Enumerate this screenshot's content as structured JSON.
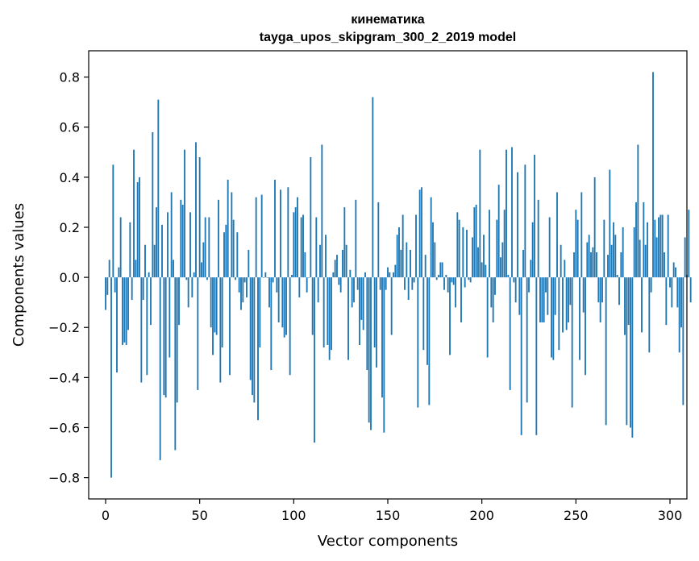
{
  "chart_data": {
    "type": "bar",
    "title_line1": "кинематика",
    "title_line2": "tayga_upos_skipgram_300_2_2019 model",
    "xlabel": "Vector components",
    "ylabel": "Components values",
    "xlim": [
      -9,
      309
    ],
    "ylim": [
      -0.885,
      0.905
    ],
    "x_ticks": [
      0,
      50,
      100,
      150,
      200,
      250,
      300
    ],
    "x_tick_labels": [
      "0",
      "50",
      "100",
      "150",
      "200",
      "250",
      "300"
    ],
    "y_ticks": [
      -0.8,
      -0.6,
      -0.4,
      -0.2,
      0.0,
      0.2,
      0.4,
      0.6,
      0.8
    ],
    "y_tick_labels": [
      "−0.8",
      "−0.6",
      "−0.4",
      "−0.2",
      "0.0",
      "0.2",
      "0.4",
      "0.6",
      "0.8"
    ],
    "bar_color": "#1f77b4",
    "grid": false,
    "values": [
      -0.13,
      -0.07,
      0.07,
      -0.8,
      0.45,
      -0.06,
      -0.38,
      0.04,
      0.24,
      -0.27,
      -0.26,
      -0.27,
      -0.21,
      0.22,
      -0.09,
      0.51,
      0.07,
      0.38,
      0.4,
      -0.42,
      -0.09,
      0.13,
      -0.39,
      0.02,
      -0.19,
      0.58,
      0.13,
      0.28,
      0.71,
      -0.73,
      0.21,
      -0.47,
      -0.48,
      0.26,
      -0.32,
      0.34,
      0.07,
      -0.69,
      -0.5,
      -0.19,
      0.31,
      0.29,
      0.51,
      -0.01,
      -0.12,
      0.26,
      -0.08,
      0.02,
      0.54,
      -0.45,
      0.48,
      0.06,
      0.14,
      0.24,
      -0.01,
      0.24,
      -0.2,
      -0.31,
      -0.22,
      -0.23,
      0.31,
      -0.42,
      -0.28,
      0.18,
      0.21,
      0.39,
      -0.39,
      0.34,
      0.23,
      -0.01,
      0.18,
      -0.06,
      -0.13,
      -0.1,
      -0.02,
      -0.08,
      0.11,
      -0.41,
      -0.47,
      -0.5,
      0.32,
      -0.57,
      -0.28,
      0.33,
      0.0,
      0.02,
      0.0,
      -0.12,
      -0.37,
      -0.02,
      0.39,
      -0.06,
      -0.18,
      0.35,
      -0.2,
      -0.24,
      -0.23,
      0.36,
      -0.39,
      0.01,
      0.26,
      0.28,
      0.32,
      -0.08,
      0.24,
      0.25,
      0.1,
      -0.06,
      0.0,
      0.48,
      -0.23,
      -0.66,
      0.24,
      -0.1,
      0.13,
      0.53,
      -0.28,
      0.17,
      -0.27,
      -0.33,
      -0.29,
      0.02,
      0.07,
      0.09,
      -0.03,
      -0.06,
      0.11,
      0.28,
      0.13,
      -0.33,
      0.03,
      -0.12,
      -0.1,
      0.31,
      -0.05,
      -0.27,
      -0.17,
      -0.21,
      0.02,
      -0.37,
      -0.58,
      -0.61,
      0.72,
      -0.28,
      -0.36,
      0.3,
      -0.05,
      -0.48,
      -0.62,
      -0.05,
      0.04,
      0.02,
      -0.23,
      0.02,
      0.05,
      0.17,
      0.2,
      0.11,
      0.25,
      -0.05,
      0.14,
      -0.09,
      0.11,
      -0.05,
      -0.02,
      0.25,
      -0.52,
      0.35,
      0.36,
      -0.29,
      0.09,
      -0.35,
      -0.51,
      0.32,
      0.22,
      0.14,
      -0.01,
      0.01,
      0.06,
      0.06,
      -0.05,
      0.01,
      -0.06,
      -0.31,
      -0.02,
      -0.03,
      -0.12,
      0.26,
      0.23,
      -0.18,
      0.2,
      -0.04,
      0.19,
      -0.01,
      -0.02,
      0.16,
      0.28,
      0.29,
      0.12,
      0.51,
      0.06,
      0.17,
      0.05,
      -0.32,
      0.27,
      -0.12,
      -0.18,
      -0.07,
      0.23,
      0.37,
      0.08,
      0.14,
      0.27,
      0.51,
      0.01,
      -0.45,
      0.52,
      -0.02,
      -0.1,
      0.42,
      -0.15,
      -0.63,
      0.11,
      0.45,
      -0.5,
      -0.06,
      0.07,
      0.22,
      0.49,
      -0.63,
      0.31,
      -0.18,
      -0.18,
      -0.18,
      -0.06,
      -0.15,
      0.24,
      -0.32,
      -0.33,
      -0.15,
      0.34,
      -0.29,
      0.13,
      -0.22,
      0.07,
      -0.21,
      -0.18,
      -0.11,
      -0.52,
      0.1,
      0.27,
      0.23,
      -0.33,
      0.34,
      -0.14,
      -0.39,
      0.14,
      0.17,
      0.1,
      0.12,
      0.4,
      0.1,
      -0.1,
      -0.18,
      -0.1,
      0.23,
      -0.59,
      0.09,
      0.43,
      0.13,
      0.22,
      0.17,
      0.01,
      -0.11,
      0.1,
      0.2,
      -0.23,
      -0.59,
      -0.19,
      -0.6,
      -0.64,
      0.2,
      0.3,
      0.53,
      0.15,
      -0.22,
      0.3,
      0.13,
      0.22,
      -0.3,
      -0.06,
      0.82,
      0.23,
      0.16,
      0.24,
      0.25,
      0.25,
      0.1,
      -0.19,
      0.25,
      -0.04,
      -0.12,
      0.06,
      0.04,
      -0.12,
      -0.3,
      -0.2,
      -0.51,
      0.16,
      0.01,
      0.27,
      -0.1
    ]
  }
}
